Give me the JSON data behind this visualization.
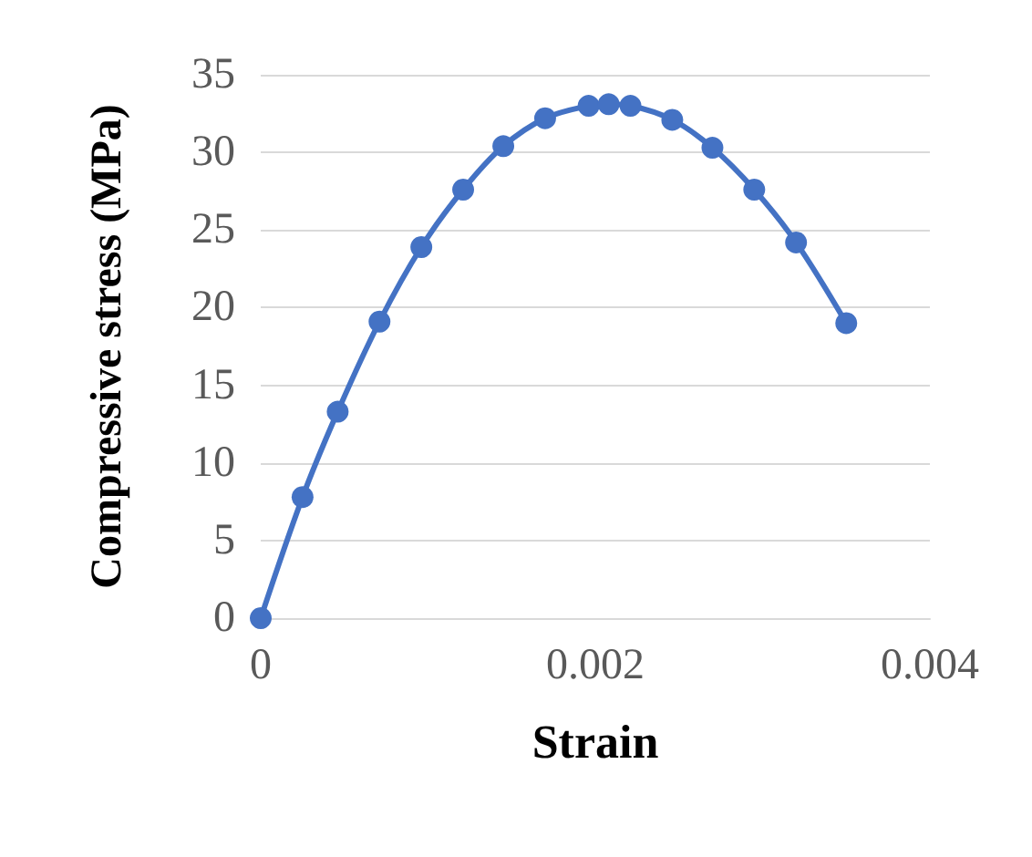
{
  "chart_data": {
    "type": "line",
    "xlabel": "Strain",
    "ylabel": "Compressive stress (MPa)",
    "x": [
      0,
      0.00025,
      0.00046,
      0.00071,
      0.00096,
      0.00121,
      0.00145,
      0.0017,
      0.00196,
      0.00208,
      0.00221,
      0.00246,
      0.0027,
      0.00295,
      0.0032,
      0.0035
    ],
    "series": [
      {
        "color": "#4472c4",
        "values": [
          0,
          7.8,
          13.3,
          19.1,
          23.9,
          27.6,
          30.4,
          32.2,
          33.0,
          33.1,
          33.0,
          32.1,
          30.3,
          27.6,
          24.2,
          19.0
        ]
      }
    ],
    "xlim": [
      0,
      0.004
    ],
    "xticks": [
      0,
      0.002,
      0.004
    ],
    "ylim": [
      0,
      35
    ],
    "yticks": [
      0,
      5,
      10,
      15,
      20,
      25,
      30,
      35
    ],
    "grid": "y",
    "marker": "circle",
    "line_style": "solid"
  }
}
